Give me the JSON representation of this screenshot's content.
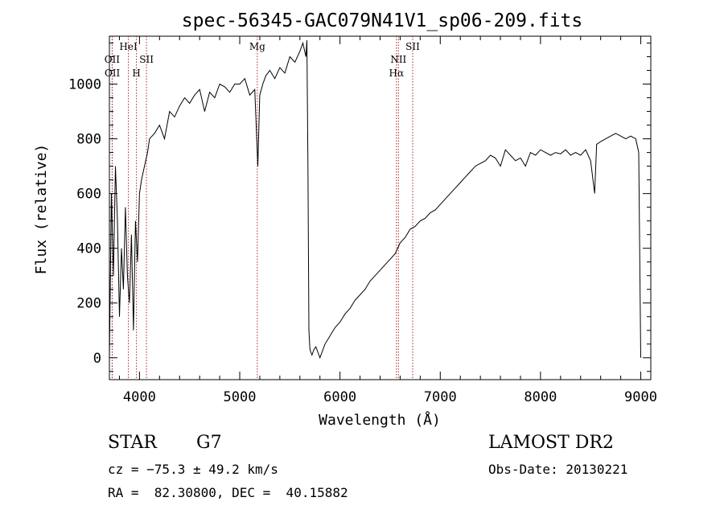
{
  "chart_data": {
    "type": "line",
    "title": "spec-56345-GAC079N41V1_sp06-209.fits",
    "xlabel": "Wavelength (Å)",
    "ylabel": "Flux (relative)",
    "xlim": [
      3700,
      9100
    ],
    "ylim": [
      -80,
      1175
    ],
    "xticks": [
      4000,
      5000,
      6000,
      7000,
      8000,
      9000
    ],
    "yticks": [
      0,
      200,
      400,
      600,
      800,
      1000
    ],
    "grid": false,
    "line_color": "#000000",
    "marker_color": "#b22222",
    "series": [
      {
        "x": [
          3700,
          3720,
          3740,
          3760,
          3780,
          3800,
          3820,
          3840,
          3860,
          3880,
          3900,
          3920,
          3940,
          3960,
          3980,
          4000,
          4020,
          4050,
          4080,
          4100,
          4150,
          4200,
          4250,
          4300,
          4350,
          4400,
          4450,
          4500,
          4550,
          4600,
          4650,
          4700,
          4750,
          4800,
          4850,
          4900,
          4950,
          5000,
          5050,
          5100,
          5150,
          5180,
          5200,
          5230,
          5260,
          5300,
          5350,
          5400,
          5450,
          5500,
          5550,
          5600,
          5630,
          5660,
          5670,
          5680,
          5690,
          5700,
          5710,
          5720,
          5740,
          5760,
          5780,
          5800,
          5850,
          5900,
          5950,
          6000,
          6050,
          6100,
          6150,
          6200,
          6250,
          6300,
          6350,
          6400,
          6450,
          6500,
          6550,
          6600,
          6650,
          6700,
          6750,
          6800,
          6850,
          6900,
          6950,
          7000,
          7050,
          7100,
          7150,
          7200,
          7250,
          7300,
          7350,
          7400,
          7450,
          7500,
          7550,
          7600,
          7650,
          7700,
          7750,
          7800,
          7850,
          7900,
          7950,
          8000,
          8050,
          8100,
          8150,
          8200,
          8250,
          8300,
          8350,
          8400,
          8450,
          8500,
          8540,
          8560,
          8600,
          8650,
          8700,
          8750,
          8800,
          8850,
          8900,
          8950,
          8980,
          9000
        ],
        "y": [
          0,
          600,
          300,
          700,
          500,
          150,
          400,
          250,
          550,
          300,
          200,
          450,
          100,
          500,
          350,
          600,
          650,
          700,
          750,
          800,
          820,
          850,
          800,
          900,
          880,
          920,
          950,
          930,
          960,
          980,
          900,
          970,
          950,
          1000,
          990,
          970,
          1000,
          1000,
          1020,
          960,
          980,
          700,
          960,
          1000,
          1030,
          1050,
          1020,
          1060,
          1040,
          1100,
          1080,
          1120,
          1150,
          1100,
          1160,
          700,
          100,
          30,
          20,
          10,
          30,
          40,
          20,
          0,
          50,
          80,
          110,
          130,
          160,
          180,
          210,
          230,
          250,
          280,
          300,
          320,
          340,
          360,
          380,
          420,
          440,
          470,
          480,
          500,
          510,
          530,
          540,
          560,
          580,
          600,
          620,
          640,
          660,
          680,
          700,
          710,
          720,
          740,
          730,
          700,
          760,
          740,
          720,
          730,
          700,
          750,
          740,
          760,
          750,
          740,
          750,
          745,
          760,
          740,
          750,
          740,
          760,
          720,
          600,
          780,
          790,
          800,
          810,
          820,
          810,
          800,
          810,
          800,
          750,
          0
        ]
      }
    ],
    "line_markers": [
      {
        "label": "OII",
        "x": 3727,
        "row": 2
      },
      {
        "label": "OII",
        "x": 3729,
        "row": 3
      },
      {
        "label": "HeI",
        "x": 3889,
        "row": 1
      },
      {
        "label": "H",
        "x": 3970,
        "row": 3
      },
      {
        "label": "SII",
        "x": 4070,
        "row": 2
      },
      {
        "label": "Mg",
        "x": 5175,
        "row": 1
      },
      {
        "label": "NII",
        "x": 6583,
        "row": 2
      },
      {
        "label": "Hα",
        "x": 6563,
        "row": 3
      },
      {
        "label": "SII",
        "x": 6725,
        "row": 1
      }
    ]
  },
  "info": {
    "object_type": "STAR",
    "subclass": "G7",
    "survey": "LAMOST DR2",
    "redshift_line": "cz = −75.3 ± 49.2 km/s",
    "obs_date_line": "Obs-Date: 20130221",
    "coords_line": "RA =  82.30800, DEC =  40.15882"
  }
}
